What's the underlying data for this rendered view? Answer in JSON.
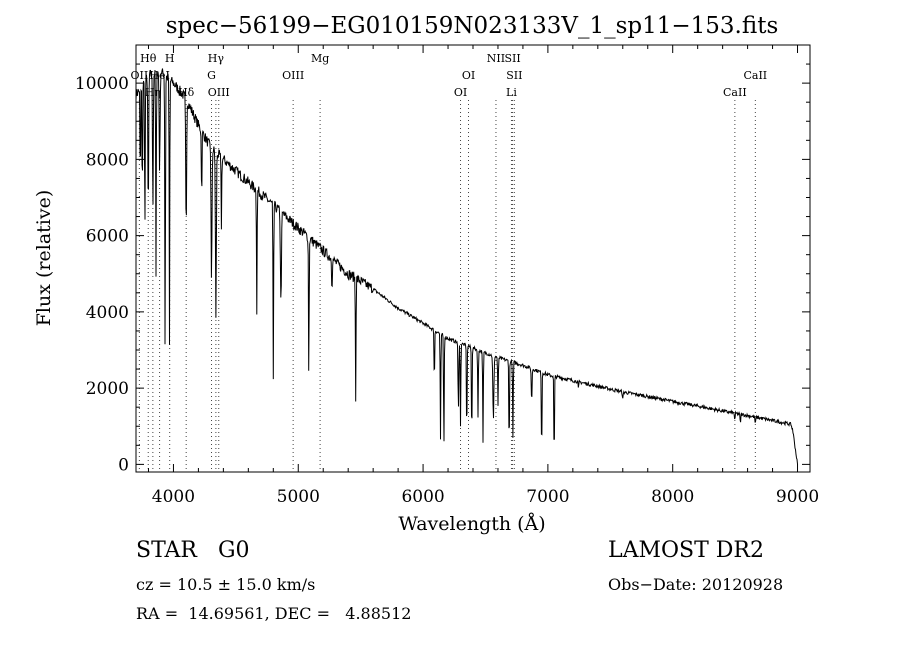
{
  "chart_data": {
    "type": "line",
    "title": "spec−56199−EG010159N023133V_1_sp11−153.fits",
    "xlabel": "Wavelength (Å)",
    "ylabel": "Flux (relative)",
    "xlim": [
      3700,
      9100
    ],
    "ylim": [
      -200,
      11000
    ],
    "xticks": [
      4000,
      5000,
      6000,
      7000,
      8000,
      9000
    ],
    "xtick_labels": [
      "4000",
      "5000",
      "6000",
      "7000",
      "8000",
      "9000"
    ],
    "yticks": [
      0,
      2000,
      4000,
      6000,
      8000,
      10000
    ],
    "ytick_labels": [
      "0",
      "2000",
      "4000",
      "6000",
      "8000",
      "10000"
    ],
    "grid": false,
    "line_markers": [
      {
        "label": "Hθ",
        "wavelength": 3798,
        "row": 0
      },
      {
        "label": "H",
        "wavelength": 3970,
        "row": 0
      },
      {
        "label": "Hγ",
        "wavelength": 4340,
        "row": 0
      },
      {
        "label": "Mg",
        "wavelength": 5175,
        "row": 0
      },
      {
        "label": "NII",
        "wavelength": 6584,
        "row": 0
      },
      {
        "label": "SII",
        "wavelength": 6717,
        "row": 0
      },
      {
        "label": "OII",
        "wavelength": 3727,
        "row": 1
      },
      {
        "label": "HeI",
        "wavelength": 3889,
        "row": 1
      },
      {
        "label": "G",
        "wavelength": 4305,
        "row": 1
      },
      {
        "label": "OIII",
        "wavelength": 4959,
        "row": 1
      },
      {
        "label": "OI",
        "wavelength": 6364,
        "row": 1
      },
      {
        "label": "SII",
        "wavelength": 6731,
        "row": 1
      },
      {
        "label": "CaII",
        "wavelength": 8662,
        "row": 1
      },
      {
        "label": "Hη",
        "wavelength": 3835,
        "row": 2
      },
      {
        "label": "Hδ",
        "wavelength": 4102,
        "row": 2
      },
      {
        "label": "OIII",
        "wavelength": 4363,
        "row": 2
      },
      {
        "label": "OI",
        "wavelength": 6300,
        "row": 2
      },
      {
        "label": "Li",
        "wavelength": 6708,
        "row": 2
      },
      {
        "label": "CaII",
        "wavelength": 8498,
        "row": 2
      }
    ],
    "continuum": [
      [
        3700,
        9700
      ],
      [
        3800,
        10200
      ],
      [
        3900,
        10300
      ],
      [
        4000,
        10000
      ],
      [
        4100,
        9600
      ],
      [
        4200,
        8900
      ],
      [
        4300,
        8300
      ],
      [
        4400,
        8000
      ],
      [
        4600,
        7400
      ],
      [
        4800,
        6800
      ],
      [
        5000,
        6200
      ],
      [
        5200,
        5600
      ],
      [
        5400,
        5000
      ],
      [
        5600,
        4600
      ],
      [
        5800,
        4100
      ],
      [
        6000,
        3700
      ],
      [
        6200,
        3300
      ],
      [
        6400,
        3050
      ],
      [
        6600,
        2800
      ],
      [
        6800,
        2600
      ],
      [
        7000,
        2350
      ],
      [
        7200,
        2200
      ],
      [
        7400,
        2050
      ],
      [
        7600,
        1900
      ],
      [
        7800,
        1780
      ],
      [
        8000,
        1650
      ],
      [
        8200,
        1530
      ],
      [
        8400,
        1400
      ],
      [
        8600,
        1280
      ],
      [
        8800,
        1150
      ],
      [
        8950,
        1050
      ],
      [
        9000,
        0
      ]
    ],
    "absorption": [
      [
        3734,
        2500,
        10
      ],
      [
        3750,
        3000,
        10
      ],
      [
        3771,
        4000,
        10
      ],
      [
        3798,
        3800,
        12
      ],
      [
        3835,
        3500,
        12
      ],
      [
        3860,
        5400,
        10
      ],
      [
        3889,
        2600,
        14
      ],
      [
        3933,
        7600,
        10
      ],
      [
        3968,
        7000,
        10
      ],
      [
        4102,
        3500,
        14
      ],
      [
        4226,
        1800,
        10
      ],
      [
        4305,
        3600,
        14
      ],
      [
        4340,
        4400,
        14
      ],
      [
        4384,
        1800,
        10
      ],
      [
        4668,
        3200,
        10
      ],
      [
        4800,
        4700,
        10
      ],
      [
        4861,
        2400,
        16
      ],
      [
        5085,
        3700,
        10
      ],
      [
        5270,
        800,
        10
      ],
      [
        5460,
        3100,
        10
      ],
      [
        6090,
        1400,
        10
      ],
      [
        6140,
        2800,
        10
      ],
      [
        6167,
        3000,
        10
      ],
      [
        6283,
        1800,
        12
      ],
      [
        6300,
        2200,
        10
      ],
      [
        6350,
        2500,
        10
      ],
      [
        6390,
        2500,
        10
      ],
      [
        6440,
        1800,
        10
      ],
      [
        6480,
        2400,
        10
      ],
      [
        6563,
        1700,
        16
      ],
      [
        6600,
        1300,
        10
      ],
      [
        6690,
        2400,
        10
      ],
      [
        6720,
        2000,
        10
      ],
      [
        6870,
        900,
        12
      ],
      [
        6950,
        2200,
        10
      ],
      [
        7050,
        2300,
        10
      ],
      [
        7245,
        200,
        10
      ],
      [
        7600,
        200,
        12
      ],
      [
        8498,
        200,
        10
      ],
      [
        8542,
        250,
        10
      ],
      [
        8662,
        200,
        10
      ]
    ]
  },
  "info": {
    "class_label": "STAR",
    "subclass": "G0",
    "survey": "LAMOST DR2",
    "cz": "cz = 10.5 ± 15.0 km/s",
    "obs_date": "Obs−Date: 20120928",
    "radec": "RA =  14.69561, DEC =   4.88512"
  }
}
